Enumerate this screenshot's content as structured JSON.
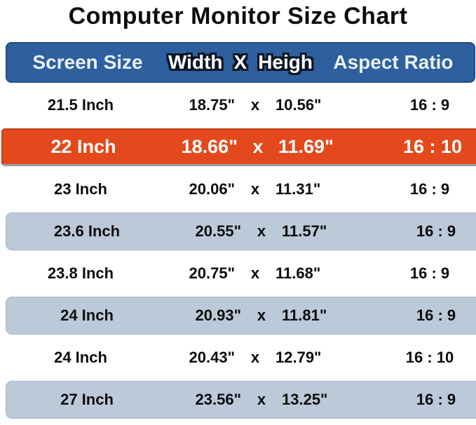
{
  "page": {
    "title": "Computer Monitor Size Chart"
  },
  "colors": {
    "header_bg": "#2e5f9e",
    "header_border": "#1f4d87",
    "header_text": "#e9f1fa",
    "highlight_bg": "#e3491c",
    "highlight_border": "#c03d13",
    "highlight_text": "#ffffff",
    "shaded_bg": "#bcc9d8",
    "shaded_border": "#a6b4c4",
    "body_text": "#0d0d0d"
  },
  "table": {
    "headers": {
      "size": "Screen Size",
      "width": "Width",
      "x": "X",
      "height": "Heigh",
      "aspect": "Aspect Ratio"
    },
    "x_separator": "x",
    "rows": [
      {
        "size": "21.5 Inch",
        "width": "18.75\"",
        "height": "10.56\"",
        "aspect": "16 : 9",
        "variant": "white"
      },
      {
        "size": "22 Inch",
        "width": "18.66\"",
        "height": "11.69\"",
        "aspect": "16 : 10",
        "variant": "highlight"
      },
      {
        "size": "23 Inch",
        "width": "20.06\"",
        "height": "11.31\"",
        "aspect": "16 : 9",
        "variant": "white"
      },
      {
        "size": "23.6 Inch",
        "width": "20.55\"",
        "height": "11.57\"",
        "aspect": "16 : 9",
        "variant": "shaded"
      },
      {
        "size": "23.8 Inch",
        "width": "20.75\"",
        "height": "11.68\"",
        "aspect": "16 : 9",
        "variant": "white"
      },
      {
        "size": "24 Inch",
        "width": "20.93\"",
        "height": "11.81\"",
        "aspect": "16 : 9",
        "variant": "shaded"
      },
      {
        "size": "24 Inch",
        "width": "20.43\"",
        "height": "12.79\"",
        "aspect": "16 : 10",
        "variant": "white"
      },
      {
        "size": "27 Inch",
        "width": "23.56\"",
        "height": "13.25\"",
        "aspect": "16 : 9",
        "variant": "shaded"
      }
    ]
  },
  "chart_data": {
    "type": "table",
    "title": "Computer Monitor Size Chart",
    "columns": [
      "Screen Size",
      "Width X Heigh",
      "Aspect Ratio"
    ],
    "rows": [
      [
        "21.5 Inch",
        "18.75\" x 10.56\"",
        "16 : 9"
      ],
      [
        "22 Inch",
        "18.66\" x 11.69\"",
        "16 : 10"
      ],
      [
        "23 Inch",
        "20.06\" x 11.31\"",
        "16 : 9"
      ],
      [
        "23.6 Inch",
        "20.55\" x 11.57\"",
        "16 : 9"
      ],
      [
        "23.8 Inch",
        "20.75\" x 11.68\"",
        "16 : 9"
      ],
      [
        "24 Inch",
        "20.93\" x 11.81\"",
        "16 : 9"
      ],
      [
        "24 Inch",
        "20.43\" x 12.79\"",
        "16 : 10"
      ],
      [
        "27 Inch",
        "23.56\" x 13.25\"",
        "16 : 9"
      ]
    ],
    "highlighted_row_index": 1,
    "layout": {
      "header_position": "top",
      "row_striping": "alternating white / blue-gray, one orange highlight row"
    }
  }
}
